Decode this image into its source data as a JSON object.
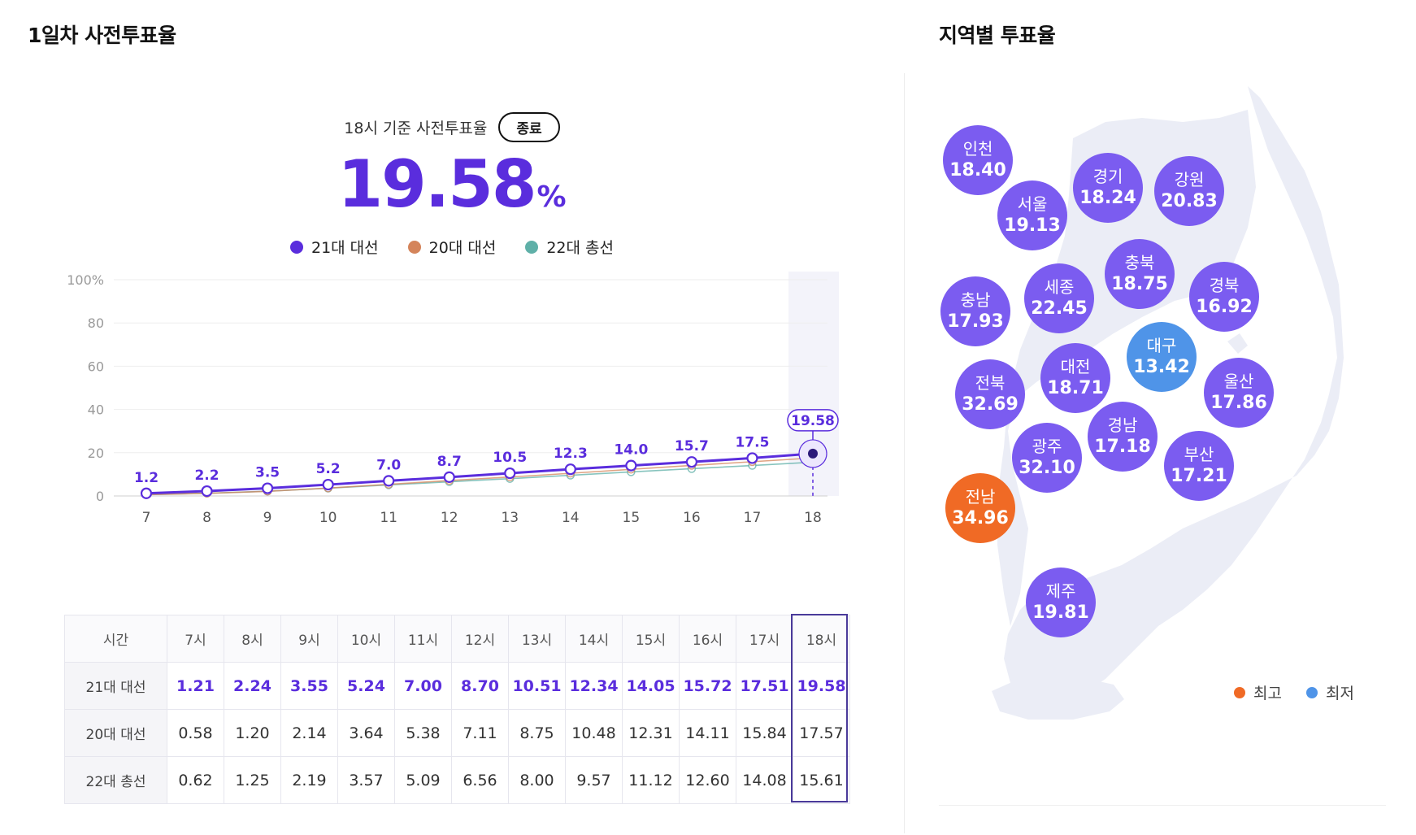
{
  "left_title": "1일차 사전투표율",
  "right_title": "지역별 투표율",
  "summary": {
    "basis_label": "18시 기준 사전투표율",
    "status_badge": "종료",
    "rate": "19.58",
    "unit": "%"
  },
  "chart_data": {
    "type": "line",
    "x": [
      7,
      8,
      9,
      10,
      11,
      12,
      13,
      14,
      15,
      16,
      17,
      18
    ],
    "ylim": [
      0,
      100
    ],
    "yticks": [
      0,
      20,
      40,
      60,
      80,
      100
    ],
    "ytick_labels": [
      "0",
      "20",
      "40",
      "60",
      "80",
      "100%"
    ],
    "highlight_x": 18,
    "highlight_label": "19.58",
    "grid": true,
    "legend": "top-center",
    "series": [
      {
        "name": "21대 대선",
        "color": "#5a2ddd",
        "values": [
          1.21,
          2.24,
          3.55,
          5.24,
          7.0,
          8.7,
          10.51,
          12.34,
          14.05,
          15.72,
          17.51,
          19.58
        ],
        "point_labels": [
          "1.2",
          "2.2",
          "3.5",
          "5.2",
          "7.0",
          "8.7",
          "10.5",
          "12.3",
          "14.0",
          "15.7",
          "17.5",
          ""
        ]
      },
      {
        "name": "20대 대선",
        "color": "#d4845a",
        "values": [
          0.58,
          1.2,
          2.14,
          3.64,
          5.38,
          7.11,
          8.75,
          10.48,
          12.31,
          14.11,
          15.84,
          17.57
        ]
      },
      {
        "name": "22대 총선",
        "color": "#5fb0a8",
        "values": [
          0.62,
          1.25,
          2.19,
          3.57,
          5.09,
          6.56,
          8.0,
          9.57,
          11.12,
          12.6,
          14.08,
          15.61
        ]
      }
    ]
  },
  "table": {
    "header_label": "시간",
    "hours": [
      "7시",
      "8시",
      "9시",
      "10시",
      "11시",
      "12시",
      "13시",
      "14시",
      "15시",
      "16시",
      "17시",
      "18시"
    ],
    "rows": [
      {
        "label": "21대 대선",
        "values": [
          "1.21",
          "2.24",
          "3.55",
          "5.24",
          "7.00",
          "8.70",
          "10.51",
          "12.34",
          "14.05",
          "15.72",
          "17.51",
          "19.58"
        ]
      },
      {
        "label": "20대 대선",
        "values": [
          "0.58",
          "1.20",
          "2.14",
          "3.64",
          "5.38",
          "7.11",
          "8.75",
          "10.48",
          "12.31",
          "14.11",
          "15.84",
          "17.57"
        ]
      },
      {
        "label": "22대 총선",
        "values": [
          "0.62",
          "1.25",
          "2.19",
          "3.57",
          "5.09",
          "6.56",
          "8.00",
          "9.57",
          "11.12",
          "12.60",
          "14.08",
          "15.61"
        ]
      }
    ]
  },
  "regions": [
    {
      "name": "인천",
      "value": "18.40",
      "status": "normal"
    },
    {
      "name": "경기",
      "value": "18.24",
      "status": "normal"
    },
    {
      "name": "강원",
      "value": "20.83",
      "status": "normal"
    },
    {
      "name": "서울",
      "value": "19.13",
      "status": "normal"
    },
    {
      "name": "충북",
      "value": "18.75",
      "status": "normal"
    },
    {
      "name": "충남",
      "value": "17.93",
      "status": "normal"
    },
    {
      "name": "세종",
      "value": "22.45",
      "status": "normal"
    },
    {
      "name": "경북",
      "value": "16.92",
      "status": "normal"
    },
    {
      "name": "대구",
      "value": "13.42",
      "status": "lowest"
    },
    {
      "name": "전북",
      "value": "32.69",
      "status": "normal"
    },
    {
      "name": "대전",
      "value": "18.71",
      "status": "normal"
    },
    {
      "name": "울산",
      "value": "17.86",
      "status": "normal"
    },
    {
      "name": "경남",
      "value": "17.18",
      "status": "normal"
    },
    {
      "name": "광주",
      "value": "32.10",
      "status": "normal"
    },
    {
      "name": "부산",
      "value": "17.21",
      "status": "normal"
    },
    {
      "name": "전남",
      "value": "34.96",
      "status": "highest"
    },
    {
      "name": "제주",
      "value": "19.81",
      "status": "normal"
    }
  ],
  "region_colors": {
    "normal": "#7b5cf0",
    "highest": "#f06a25",
    "lowest": "#4f94e8"
  },
  "map_legend": {
    "highest_label": "최고",
    "lowest_label": "최저"
  }
}
